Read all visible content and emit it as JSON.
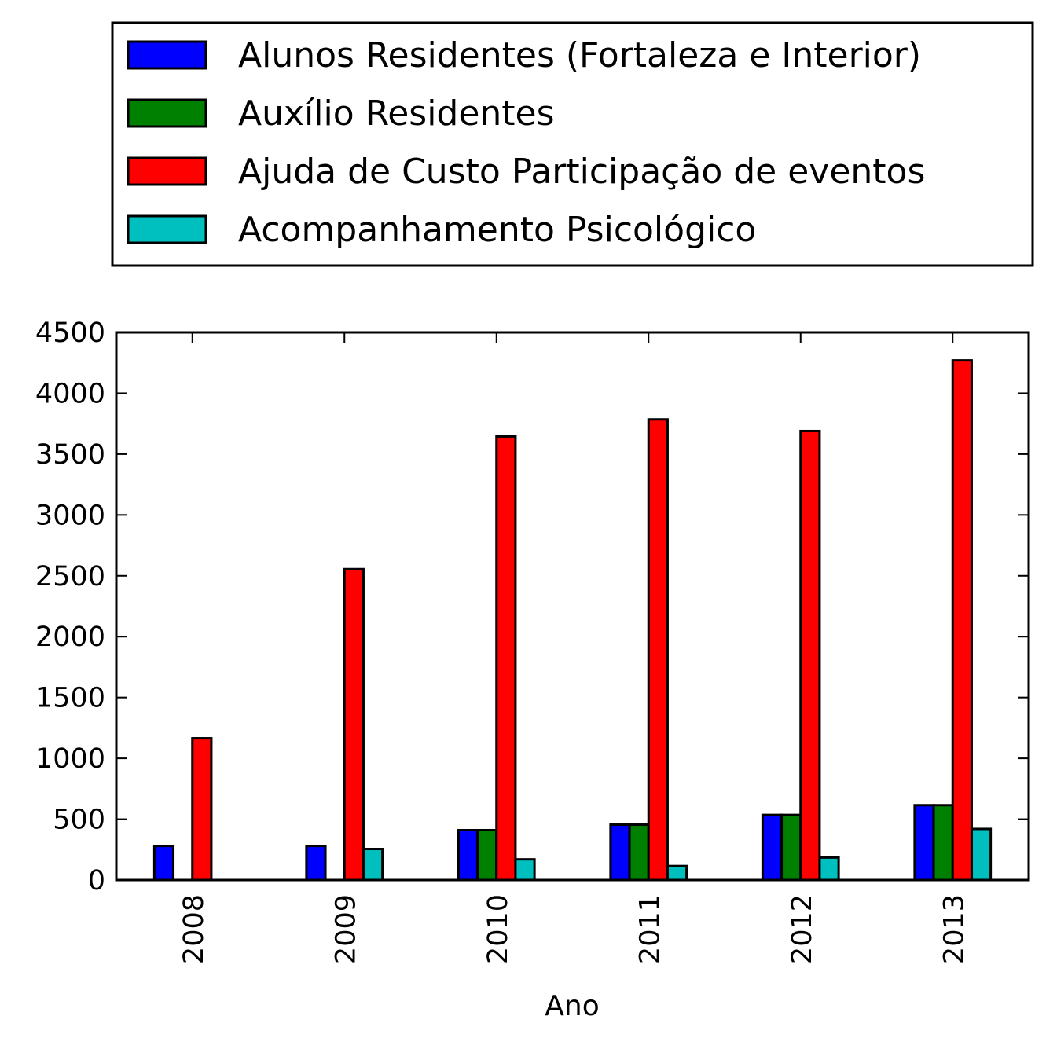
{
  "chart_data": {
    "type": "bar",
    "title": "",
    "xlabel": "Ano",
    "ylabel": "",
    "categories": [
      "2008",
      "2009",
      "2010",
      "2011",
      "2012",
      "2013"
    ],
    "ylim": [
      0,
      4500
    ],
    "yticks": [
      0,
      500,
      1000,
      1500,
      2000,
      2500,
      3000,
      3500,
      4000,
      4500
    ],
    "grid": false,
    "legend_position": "top",
    "series": [
      {
        "name": "Alunos Residentes (Fortaleza e Interior)",
        "color": "#0000ff",
        "values": [
          280,
          280,
          410,
          455,
          535,
          615
        ]
      },
      {
        "name": "Auxílio Residentes",
        "color": "#008000",
        "values": [
          0,
          0,
          410,
          455,
          535,
          615
        ]
      },
      {
        "name": "Ajuda de Custo Participação de eventos",
        "color": "#ff0000",
        "values": [
          1165,
          2555,
          3645,
          3785,
          3690,
          4270
        ]
      },
      {
        "name": "Acompanhamento Psicológico",
        "color": "#00bfbf",
        "values": [
          0,
          255,
          170,
          115,
          185,
          420
        ]
      }
    ]
  }
}
